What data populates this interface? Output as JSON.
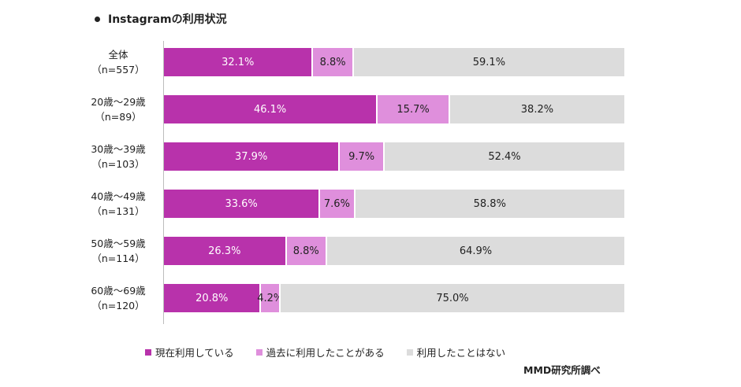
{
  "chart_data": {
    "type": "bar",
    "orientation": "horizontal",
    "stacked": true,
    "title": "Instagramの利用状況",
    "categories": [
      [
        "全体",
        "（n=557）"
      ],
      [
        "20歳～29歳",
        "（n=89）"
      ],
      [
        "30歳～39歳",
        "（n=103）"
      ],
      [
        "40歳～49歳",
        "（n=131）"
      ],
      [
        "50歳～59歳",
        "（n=114）"
      ],
      [
        "60歳～69歳",
        "（n=120）"
      ]
    ],
    "series": [
      {
        "name": "現在利用している",
        "color": "#b832ab",
        "values": [
          32.1,
          46.1,
          37.9,
          33.6,
          26.3,
          20.8
        ]
      },
      {
        "name": "過去に利用したことがある",
        "color": "#df8fdc",
        "values": [
          8.8,
          15.7,
          9.7,
          7.6,
          8.8,
          4.2
        ]
      },
      {
        "name": "利用したことはない",
        "color": "#dcdcdc",
        "values": [
          59.1,
          38.2,
          52.4,
          58.8,
          64.9,
          75.0
        ]
      }
    ],
    "value_suffix": "%",
    "xlim": [
      0,
      100
    ],
    "legend_position": "bottom",
    "source": "MMD研究所調べ"
  }
}
